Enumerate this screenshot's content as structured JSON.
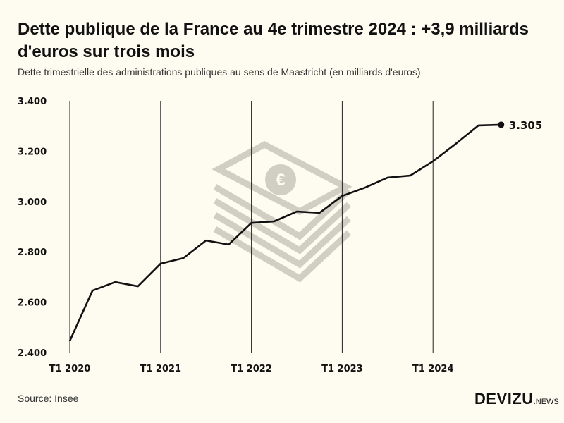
{
  "title": "Dette publique de la France au 4e trimestre 2024 : +3,9 milliards d'euros sur trois mois",
  "subtitle": "Dette trimestrielle des administrations publiques au sens de Maastricht (en milliards d'euros)",
  "source": "Source: Insee",
  "logo": {
    "main": "DEVIZU",
    "suffix": ".NEWS"
  },
  "chart_data": {
    "type": "line",
    "title": "Dette publique de la France au 4e trimestre 2024 : +3,9 milliards d'euros sur trois mois",
    "xlabel": "",
    "ylabel": "",
    "ylim": [
      2400,
      3400
    ],
    "yticks": [
      2400,
      2600,
      2800,
      3000,
      3200,
      3400
    ],
    "ytick_labels": [
      "2.400",
      "2.600",
      "2.800",
      "3.000",
      "3.200",
      "3.400"
    ],
    "xtick_labels": [
      "T1 2020",
      "T1 2021",
      "T1 2022",
      "T1 2023",
      "T1 2024"
    ],
    "x": [
      "T1 2020",
      "T2 2020",
      "T3 2020",
      "T4 2020",
      "T1 2021",
      "T2 2021",
      "T3 2021",
      "T4 2021",
      "T1 2022",
      "T2 2022",
      "T3 2022",
      "T4 2022",
      "T1 2023",
      "T2 2023",
      "T3 2023",
      "T4 2023",
      "T1 2024",
      "T2 2024",
      "T3 2024",
      "T4 2024"
    ],
    "series": [
      {
        "name": "Dette publique",
        "values": [
          2446,
          2646,
          2680,
          2663,
          2753,
          2775,
          2845,
          2829,
          2915,
          2921,
          2960,
          2955,
          3022,
          3055,
          3095,
          3103,
          3160,
          3229,
          3302,
          3305
        ]
      }
    ],
    "last_label": "3.305",
    "grid": "vertical at T1",
    "color": "#111111"
  }
}
